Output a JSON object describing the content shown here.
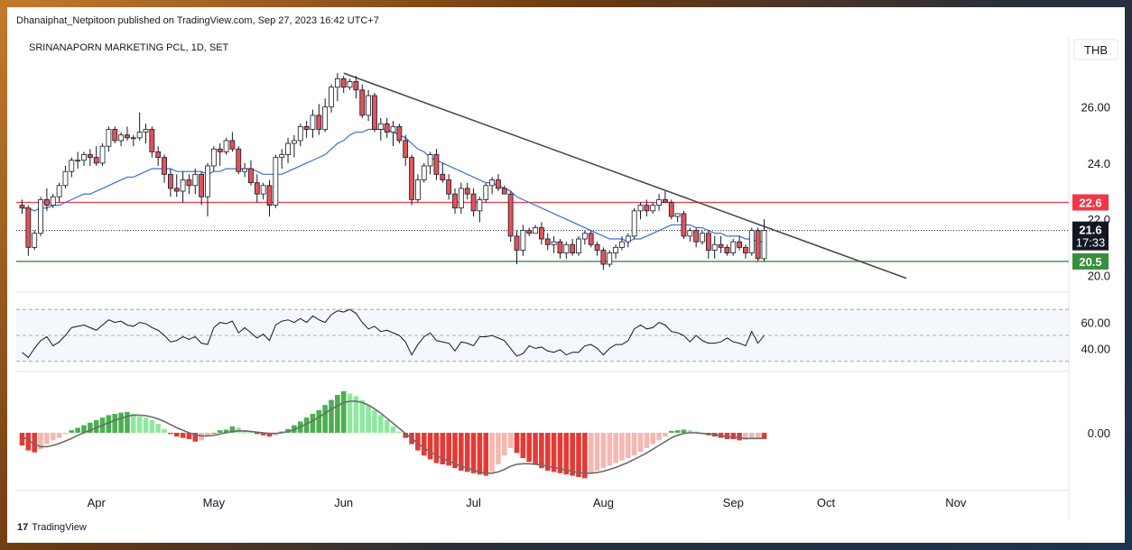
{
  "header": {
    "publish_line": "Dhanaiphat_Netpitoon published on TradingView.com, Sep 27, 2023 16:42 UTC+7"
  },
  "footer": {
    "brand": "TradingView",
    "logo_text": "17"
  },
  "chart_data": {
    "type": "candlestick",
    "title": "SRINANAPORN MARKETING PCL, 1D, SET",
    "currency": "THB",
    "x_labels": [
      "Apr",
      "May",
      "Jun",
      "Jul",
      "Aug",
      "Sep",
      "Oct",
      "Nov"
    ],
    "ylim": [
      19.6,
      27.3
    ],
    "yticks": [
      "26.00",
      "24.0",
      "22.0",
      "20.0"
    ],
    "price_markers": [
      {
        "label": "22.6",
        "color": "#f23645"
      },
      {
        "label": "21.6",
        "sub": "17:33",
        "color": "#131722"
      },
      {
        "label": "20.5",
        "color": "#388e3c"
      }
    ],
    "horizontal_levels": [
      {
        "value": 22.6,
        "color": "#f23645"
      },
      {
        "value": 20.5,
        "color": "#388e3c"
      },
      {
        "value": 21.6,
        "color": "#131722",
        "style": "dotted"
      }
    ],
    "trendline": {
      "from_day": "Jun 5",
      "from_price": 27.2,
      "to_day": "Oct 23",
      "to_price": 19.9,
      "color": "#4a4a4a"
    },
    "colors": {
      "up": "#ffffff",
      "down": "#e0545a",
      "outline": "#131722",
      "ma": "#3a6fcf"
    },
    "candles": [
      [
        22.5,
        22.7,
        22.2,
        22.4
      ],
      [
        22.4,
        22.5,
        20.7,
        21.0
      ],
      [
        21.0,
        21.6,
        20.9,
        21.5
      ],
      [
        21.5,
        22.8,
        21.4,
        22.7
      ],
      [
        22.7,
        23.1,
        22.3,
        22.5
      ],
      [
        22.5,
        22.9,
        22.4,
        22.8
      ],
      [
        22.8,
        23.3,
        22.6,
        23.2
      ],
      [
        23.2,
        23.9,
        23.1,
        23.7
      ],
      [
        23.7,
        24.2,
        23.5,
        24.1
      ],
      [
        24.1,
        24.4,
        23.8,
        24.1
      ],
      [
        24.1,
        24.4,
        23.9,
        24.3
      ],
      [
        24.3,
        24.5,
        23.9,
        24.2
      ],
      [
        24.2,
        24.6,
        23.9,
        24.0
      ],
      [
        24.0,
        24.7,
        23.9,
        24.6
      ],
      [
        24.6,
        25.3,
        24.4,
        25.2
      ],
      [
        25.2,
        25.3,
        24.7,
        24.8
      ],
      [
        24.8,
        25.1,
        24.6,
        25.0
      ],
      [
        25.0,
        25.3,
        24.8,
        24.9
      ],
      [
        24.9,
        25.0,
        24.6,
        24.9
      ],
      [
        24.9,
        25.8,
        24.8,
        25.1
      ],
      [
        25.1,
        25.4,
        24.7,
        25.2
      ],
      [
        25.2,
        25.3,
        24.2,
        24.4
      ],
      [
        24.4,
        24.6,
        23.9,
        24.2
      ],
      [
        24.2,
        24.3,
        23.3,
        23.6
      ],
      [
        23.6,
        23.8,
        22.8,
        23.1
      ],
      [
        23.1,
        23.6,
        22.8,
        23.0
      ],
      [
        23.0,
        23.7,
        22.6,
        23.4
      ],
      [
        23.4,
        23.6,
        22.9,
        23.2
      ],
      [
        23.2,
        23.8,
        22.9,
        23.6
      ],
      [
        23.6,
        23.7,
        22.5,
        22.8
      ],
      [
        22.8,
        24.0,
        22.1,
        23.9
      ],
      [
        23.9,
        24.6,
        23.7,
        24.5
      ],
      [
        24.5,
        24.7,
        23.9,
        24.4
      ],
      [
        24.4,
        24.9,
        24.3,
        24.8
      ],
      [
        24.8,
        25.1,
        24.4,
        24.5
      ],
      [
        24.5,
        24.6,
        23.6,
        23.7
      ],
      [
        23.7,
        24.0,
        23.5,
        23.8
      ],
      [
        23.8,
        24.1,
        23.2,
        23.3
      ],
      [
        23.3,
        23.6,
        22.6,
        22.9
      ],
      [
        22.9,
        23.3,
        22.7,
        23.2
      ],
      [
        23.2,
        23.4,
        22.1,
        22.5
      ],
      [
        22.5,
        24.3,
        22.4,
        24.2
      ],
      [
        24.2,
        24.5,
        23.8,
        24.3
      ],
      [
        24.3,
        24.9,
        24.0,
        24.7
      ],
      [
        24.7,
        25.0,
        24.2,
        24.8
      ],
      [
        24.8,
        25.4,
        24.6,
        25.3
      ],
      [
        25.3,
        25.5,
        24.9,
        25.2
      ],
      [
        25.2,
        25.9,
        24.9,
        25.7
      ],
      [
        25.7,
        26.1,
        25.0,
        25.2
      ],
      [
        25.2,
        26.3,
        25.1,
        26.0
      ],
      [
        26.0,
        26.8,
        25.8,
        26.7
      ],
      [
        26.7,
        27.2,
        26.2,
        27.0
      ],
      [
        27.0,
        27.1,
        26.5,
        26.7
      ],
      [
        26.7,
        27.0,
        26.6,
        26.9
      ],
      [
        26.9,
        27.1,
        26.3,
        26.6
      ],
      [
        26.6,
        26.8,
        25.6,
        25.7
      ],
      [
        25.7,
        26.6,
        25.5,
        26.4
      ],
      [
        26.4,
        26.5,
        25.1,
        25.2
      ],
      [
        25.2,
        25.6,
        24.8,
        25.4
      ],
      [
        25.4,
        25.6,
        24.9,
        25.1
      ],
      [
        25.1,
        25.5,
        24.6,
        25.3
      ],
      [
        25.3,
        25.4,
        24.7,
        24.8
      ],
      [
        24.8,
        25.0,
        23.9,
        24.2
      ],
      [
        24.2,
        24.3,
        22.5,
        22.7
      ],
      [
        22.7,
        23.6,
        22.6,
        23.4
      ],
      [
        23.4,
        24.0,
        23.3,
        23.9
      ],
      [
        23.9,
        24.4,
        23.6,
        24.3
      ],
      [
        24.3,
        24.5,
        23.4,
        23.6
      ],
      [
        23.6,
        24.0,
        23.3,
        23.4
      ],
      [
        23.4,
        23.6,
        22.7,
        22.9
      ],
      [
        22.9,
        23.1,
        22.2,
        22.4
      ],
      [
        22.4,
        23.3,
        22.2,
        23.1
      ],
      [
        23.1,
        23.3,
        22.7,
        22.9
      ],
      [
        22.9,
        23.1,
        22.1,
        22.3
      ],
      [
        22.3,
        22.8,
        21.9,
        22.7
      ],
      [
        22.7,
        23.3,
        22.6,
        23.2
      ],
      [
        23.2,
        23.5,
        22.9,
        23.4
      ],
      [
        23.4,
        23.6,
        23.0,
        23.1
      ],
      [
        23.1,
        23.2,
        22.9,
        22.9
      ],
      [
        22.9,
        23.0,
        21.2,
        21.4
      ],
      [
        21.4,
        21.6,
        20.4,
        20.9
      ],
      [
        20.9,
        21.8,
        20.7,
        21.6
      ],
      [
        21.6,
        21.7,
        21.4,
        21.5
      ],
      [
        21.5,
        21.8,
        21.5,
        21.7
      ],
      [
        21.7,
        21.9,
        21.1,
        21.3
      ],
      [
        21.3,
        21.5,
        20.9,
        21.1
      ],
      [
        21.1,
        21.4,
        20.8,
        21.2
      ],
      [
        21.2,
        21.3,
        20.6,
        20.8
      ],
      [
        20.8,
        21.2,
        20.6,
        21.1
      ],
      [
        21.1,
        21.3,
        20.7,
        20.8
      ],
      [
        20.8,
        21.4,
        20.7,
        21.3
      ],
      [
        21.3,
        21.6,
        21.1,
        21.5
      ],
      [
        21.5,
        21.6,
        21.0,
        21.1
      ],
      [
        21.1,
        21.2,
        20.7,
        20.9
      ],
      [
        20.9,
        21.0,
        20.2,
        20.4
      ],
      [
        20.4,
        20.9,
        20.3,
        20.8
      ],
      [
        20.8,
        21.1,
        20.6,
        21.0
      ],
      [
        21.0,
        21.4,
        20.9,
        21.2
      ],
      [
        21.2,
        21.5,
        21.0,
        21.4
      ],
      [
        21.4,
        22.4,
        21.3,
        22.3
      ],
      [
        22.3,
        22.6,
        22.0,
        22.5
      ],
      [
        22.5,
        22.7,
        22.1,
        22.3
      ],
      [
        22.3,
        22.6,
        22.2,
        22.5
      ],
      [
        22.5,
        22.9,
        22.3,
        22.7
      ],
      [
        22.7,
        23.0,
        22.6,
        22.6
      ],
      [
        22.6,
        22.7,
        22.0,
        22.1
      ],
      [
        22.1,
        22.2,
        21.9,
        22.2
      ],
      [
        22.2,
        22.3,
        21.3,
        21.4
      ],
      [
        21.4,
        21.7,
        21.2,
        21.6
      ],
      [
        21.6,
        21.7,
        21.0,
        21.2
      ],
      [
        21.2,
        21.6,
        21.1,
        21.5
      ],
      [
        21.5,
        21.6,
        20.6,
        20.9
      ],
      [
        20.9,
        21.4,
        20.6,
        21.1
      ],
      [
        21.1,
        21.4,
        20.8,
        21.0
      ],
      [
        21.0,
        21.1,
        20.7,
        20.8
      ],
      [
        20.8,
        21.3,
        20.7,
        21.2
      ],
      [
        21.2,
        21.4,
        20.9,
        21.0
      ],
      [
        21.0,
        21.1,
        20.6,
        20.8
      ],
      [
        20.8,
        21.7,
        20.7,
        21.6
      ],
      [
        21.6,
        21.7,
        20.5,
        20.6
      ],
      [
        20.6,
        22.0,
        20.5,
        21.6
      ]
    ],
    "ma": [
      22.4,
      22.4,
      22.3,
      22.4,
      22.4,
      22.5,
      22.5,
      22.6,
      22.7,
      22.8,
      22.9,
      22.9,
      23.0,
      23.1,
      23.2,
      23.3,
      23.4,
      23.5,
      23.5,
      23.6,
      23.7,
      23.8,
      23.8,
      23.8,
      23.8,
      23.7,
      23.7,
      23.7,
      23.7,
      23.7,
      23.6,
      23.7,
      23.7,
      23.8,
      23.8,
      23.8,
      23.8,
      23.8,
      23.7,
      23.6,
      23.6,
      23.6,
      23.6,
      23.7,
      23.8,
      23.9,
      24.0,
      24.1,
      24.2,
      24.3,
      24.5,
      24.7,
      24.8,
      25.0,
      25.1,
      25.1,
      25.2,
      25.2,
      25.2,
      25.2,
      25.1,
      25.0,
      24.9,
      24.7,
      24.5,
      24.4,
      24.2,
      24.1,
      24.0,
      23.9,
      23.8,
      23.7,
      23.6,
      23.5,
      23.4,
      23.3,
      23.3,
      23.2,
      23.1,
      23.0,
      22.8,
      22.7,
      22.6,
      22.5,
      22.4,
      22.3,
      22.2,
      22.1,
      22.0,
      21.9,
      21.8,
      21.7,
      21.6,
      21.5,
      21.4,
      21.3,
      21.3,
      21.3,
      21.2,
      21.3,
      21.3,
      21.4,
      21.5,
      21.6,
      21.7,
      21.8,
      21.8,
      21.8,
      21.8,
      21.7,
      21.7,
      21.6,
      21.5,
      21.5,
      21.4,
      21.4,
      21.4,
      21.3,
      21.3,
      21.2,
      21.2
    ],
    "rsi": {
      "yticks": [
        "60.00",
        "40.00"
      ],
      "levels": [
        70,
        50,
        30
      ],
      "color": "#131722",
      "values": [
        37,
        33,
        40,
        46,
        49,
        42,
        45,
        50,
        56,
        57,
        58,
        56,
        54,
        58,
        62,
        60,
        61,
        58,
        57,
        60,
        59,
        56,
        54,
        50,
        45,
        46,
        49,
        47,
        49,
        44,
        43,
        56,
        60,
        59,
        61,
        52,
        56,
        52,
        48,
        51,
        46,
        58,
        61,
        62,
        60,
        63,
        60,
        65,
        62,
        60,
        66,
        69,
        68,
        70,
        67,
        60,
        55,
        57,
        53,
        54,
        52,
        50,
        45,
        35,
        43,
        49,
        52,
        46,
        45,
        44,
        38,
        45,
        44,
        42,
        49,
        49,
        50,
        48,
        46,
        40,
        34,
        36,
        42,
        40,
        41,
        38,
        37,
        39,
        35,
        37,
        37,
        42,
        43,
        40,
        35,
        40,
        43,
        43,
        46,
        55,
        58,
        55,
        56,
        60,
        58,
        53,
        52,
        50,
        45,
        50,
        46,
        44,
        44,
        45,
        48,
        45,
        44,
        42,
        53,
        44,
        50
      ]
    },
    "macd": {
      "ytick": "0.00",
      "colors": {
        "pos_strong": "#4caf50",
        "pos_weak": "#8fe8a0",
        "neg_strong": "#e53935",
        "neg_weak": "#f5b7b1",
        "signal": "#6b6b6b"
      },
      "hist": [
        -0.2,
        -0.28,
        -0.31,
        -0.26,
        -0.18,
        -0.12,
        -0.08,
        -0.02,
        0.04,
        0.08,
        0.12,
        0.16,
        0.2,
        0.24,
        0.28,
        0.3,
        0.32,
        0.33,
        0.3,
        0.26,
        0.24,
        0.2,
        0.14,
        0.06,
        -0.02,
        -0.06,
        -0.08,
        -0.1,
        -0.14,
        -0.12,
        -0.06,
        0.0,
        0.04,
        0.05,
        0.1,
        0.08,
        0.04,
        0.02,
        -0.02,
        -0.04,
        -0.06,
        -0.04,
        0.02,
        0.06,
        0.12,
        0.18,
        0.24,
        0.3,
        0.36,
        0.44,
        0.52,
        0.6,
        0.66,
        0.62,
        0.58,
        0.52,
        0.44,
        0.36,
        0.28,
        0.2,
        0.1,
        0.02,
        -0.08,
        -0.18,
        -0.28,
        -0.36,
        -0.42,
        -0.48,
        -0.5,
        -0.52,
        -0.56,
        -0.6,
        -0.62,
        -0.64,
        -0.66,
        -0.68,
        -0.62,
        -0.5,
        -0.36,
        -0.24,
        -0.32,
        -0.4,
        -0.46,
        -0.5,
        -0.56,
        -0.6,
        -0.62,
        -0.64,
        -0.66,
        -0.68,
        -0.7,
        -0.72,
        -0.64,
        -0.6,
        -0.56,
        -0.52,
        -0.48,
        -0.44,
        -0.4,
        -0.36,
        -0.3,
        -0.24,
        -0.18,
        -0.12,
        -0.06,
        0.03,
        0.04,
        0.05,
        0.04,
        0.02,
        -0.02,
        -0.04,
        -0.06,
        -0.08,
        -0.1,
        -0.1,
        -0.12,
        -0.11,
        -0.1,
        -0.09,
        -0.1
      ],
      "signal": [
        -0.05,
        -0.12,
        -0.18,
        -0.22,
        -0.22,
        -0.2,
        -0.17,
        -0.13,
        -0.09,
        -0.04,
        0.0,
        0.04,
        0.08,
        0.12,
        0.16,
        0.2,
        0.23,
        0.26,
        0.28,
        0.28,
        0.27,
        0.25,
        0.22,
        0.18,
        0.13,
        0.08,
        0.04,
        0.0,
        -0.03,
        -0.05,
        -0.05,
        -0.04,
        -0.02,
        0.0,
        0.02,
        0.03,
        0.03,
        0.02,
        0.01,
        0.0,
        -0.01,
        -0.01,
        0.0,
        0.02,
        0.05,
        0.09,
        0.14,
        0.19,
        0.25,
        0.31,
        0.37,
        0.43,
        0.48,
        0.5,
        0.5,
        0.48,
        0.44,
        0.38,
        0.31,
        0.23,
        0.15,
        0.07,
        -0.01,
        -0.09,
        -0.17,
        -0.24,
        -0.3,
        -0.36,
        -0.41,
        -0.45,
        -0.49,
        -0.53,
        -0.56,
        -0.59,
        -0.62,
        -0.64,
        -0.64,
        -0.62,
        -0.58,
        -0.53,
        -0.5,
        -0.49,
        -0.49,
        -0.5,
        -0.51,
        -0.53,
        -0.55,
        -0.57,
        -0.59,
        -0.61,
        -0.63,
        -0.64,
        -0.64,
        -0.63,
        -0.61,
        -0.58,
        -0.55,
        -0.51,
        -0.47,
        -0.42,
        -0.37,
        -0.32,
        -0.26,
        -0.2,
        -0.14,
        -0.08,
        -0.04,
        -0.01,
        0.0,
        0.0,
        -0.01,
        -0.02,
        -0.03,
        -0.05,
        -0.06,
        -0.07,
        -0.08,
        -0.09,
        -0.09,
        -0.09,
        -0.09
      ]
    }
  }
}
